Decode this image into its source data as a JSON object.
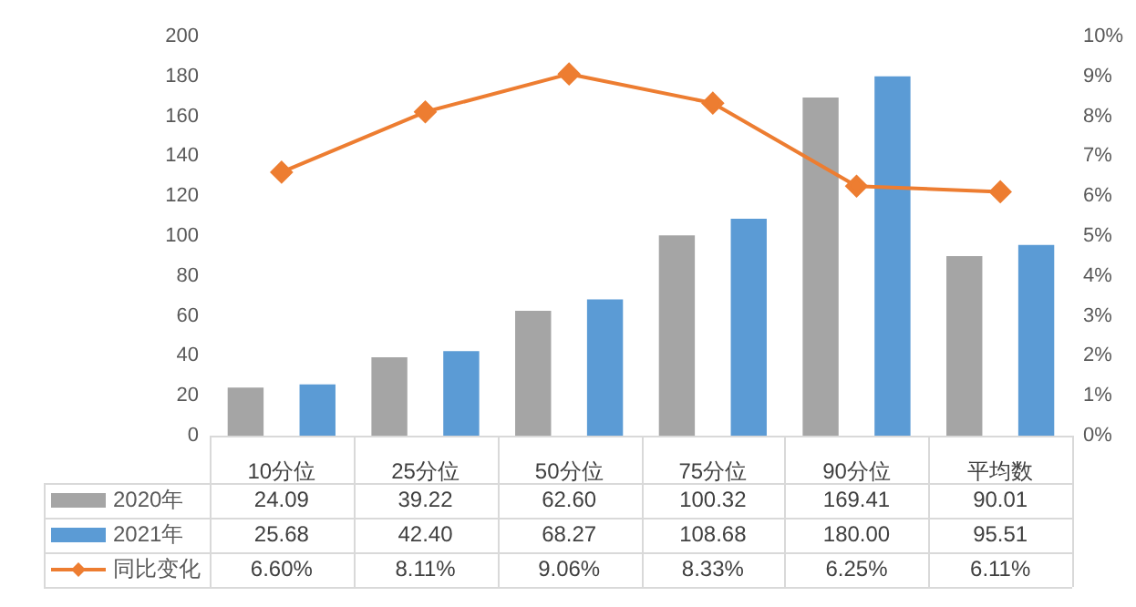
{
  "chart_data": {
    "type": "bar",
    "categories": [
      "10分位",
      "25分位",
      "50分位",
      "75分位",
      "90分位",
      "平均数"
    ],
    "series": [
      {
        "name": "2020年",
        "color": "#a5a5a5",
        "values": [
          24.09,
          39.22,
          62.6,
          100.32,
          169.41,
          90.01
        ],
        "value_labels": [
          "24.09",
          "39.22",
          "62.60",
          "100.32",
          "169.41",
          "90.01"
        ]
      },
      {
        "name": "2021年",
        "color": "#5b9bd5",
        "values": [
          25.68,
          42.4,
          68.27,
          108.68,
          180.0,
          95.51
        ],
        "value_labels": [
          "25.68",
          "42.40",
          "68.27",
          "108.68",
          "180.00",
          "95.51"
        ]
      },
      {
        "name": "同比变化",
        "type": "line",
        "axis": "y2",
        "color": "#ed7d31",
        "marker": "diamond",
        "values": [
          6.6,
          8.11,
          9.06,
          8.33,
          6.25,
          6.11
        ],
        "value_labels": [
          "6.60%",
          "8.11%",
          "9.06%",
          "8.33%",
          "6.25%",
          "6.11%"
        ]
      }
    ],
    "ylim": [
      0,
      200
    ],
    "yticks": [
      0,
      20,
      40,
      60,
      80,
      100,
      120,
      140,
      160,
      180,
      200
    ],
    "y2lim": [
      0,
      10
    ],
    "y2ticks": [
      {
        "value": 0,
        "label": "0%"
      },
      {
        "value": 1,
        "label": "1%"
      },
      {
        "value": 2,
        "label": "2%"
      },
      {
        "value": 3,
        "label": "3%"
      },
      {
        "value": 4,
        "label": "4%"
      },
      {
        "value": 5,
        "label": "5%"
      },
      {
        "value": 6,
        "label": "6%"
      },
      {
        "value": 7,
        "label": "7%"
      },
      {
        "value": 8,
        "label": "8%"
      },
      {
        "value": 9,
        "label": "9%"
      },
      {
        "value": 10,
        "label": "10%"
      }
    ],
    "grid": false,
    "legend": "bottom"
  }
}
